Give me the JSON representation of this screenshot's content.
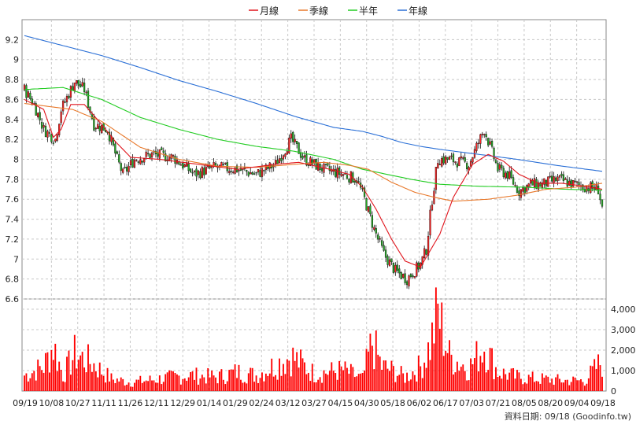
{
  "chart_data": {
    "type": "candlestick",
    "legend": [
      {
        "label": "月線",
        "color": "#e0141c"
      },
      {
        "label": "季線",
        "color": "#e8782a"
      },
      {
        "label": "半年",
        "color": "#22cc22"
      },
      {
        "label": "年線",
        "color": "#2a6fd6"
      }
    ],
    "price_axis": {
      "ticks": [
        "9.2",
        "9",
        "8.8",
        "8.6",
        "8.4",
        "8.2",
        "8",
        "7.8",
        "7.6",
        "7.4",
        "7.2",
        "7",
        "6.8",
        "6.6"
      ],
      "ylim": [
        6.6,
        9.4
      ]
    },
    "volume_axis": {
      "ticks": [
        "4,000",
        "3,000",
        "2,000",
        "1,000",
        "0"
      ],
      "ylim": [
        0,
        4500
      ]
    },
    "x_labels": [
      "09/19",
      "10/08",
      "10/27",
      "11/11",
      "11/26",
      "12/11",
      "12/29",
      "01/14",
      "01/29",
      "02/24",
      "03/12",
      "03/27",
      "04/15",
      "04/30",
      "05/18",
      "06/02",
      "06/17",
      "07/03",
      "07/21",
      "08/05",
      "08/20",
      "09/04",
      "09/18"
    ],
    "candle_colors": {
      "up": "#ff2222",
      "down": "#22aa22",
      "volume": "#ff0000"
    },
    "close_anchors": [
      [
        0,
        8.7
      ],
      [
        5,
        8.55
      ],
      [
        10,
        8.3
      ],
      [
        16,
        8.2
      ],
      [
        19,
        8.5
      ],
      [
        26,
        8.78
      ],
      [
        31,
        8.7
      ],
      [
        36,
        8.35
      ],
      [
        43,
        8.3
      ],
      [
        48,
        8.0
      ],
      [
        51,
        7.85
      ],
      [
        57,
        8.0
      ],
      [
        66,
        8.05
      ],
      [
        77,
        8.02
      ],
      [
        88,
        7.85
      ],
      [
        98,
        7.92
      ],
      [
        110,
        7.9
      ],
      [
        120,
        7.85
      ],
      [
        130,
        7.95
      ],
      [
        138,
        8.2
      ],
      [
        145,
        8.0
      ],
      [
        155,
        7.9
      ],
      [
        165,
        7.85
      ],
      [
        172,
        7.8
      ],
      [
        176,
        7.6
      ],
      [
        181,
        7.3
      ],
      [
        186,
        7.05
      ],
      [
        192,
        6.88
      ],
      [
        198,
        6.8
      ],
      [
        205,
        6.95
      ],
      [
        208,
        7.1
      ],
      [
        211,
        7.6
      ],
      [
        214,
        8.0
      ],
      [
        220,
        8.0
      ],
      [
        230,
        7.95
      ],
      [
        238,
        8.3
      ],
      [
        245,
        7.9
      ],
      [
        250,
        7.85
      ],
      [
        256,
        7.68
      ],
      [
        262,
        7.75
      ],
      [
        268,
        7.75
      ],
      [
        276,
        7.8
      ],
      [
        284,
        7.75
      ],
      [
        292,
        7.72
      ],
      [
        297,
        7.7
      ],
      [
        299,
        7.52
      ]
    ],
    "ma_month": [
      [
        0,
        8.6
      ],
      [
        10,
        8.5
      ],
      [
        15,
        8.22
      ],
      [
        19,
        8.3
      ],
      [
        24,
        8.55
      ],
      [
        31,
        8.55
      ],
      [
        40,
        8.35
      ],
      [
        47,
        8.18
      ],
      [
        55,
        8.02
      ],
      [
        70,
        8.0
      ],
      [
        90,
        7.95
      ],
      [
        110,
        7.9
      ],
      [
        130,
        7.95
      ],
      [
        142,
        7.97
      ],
      [
        158,
        7.9
      ],
      [
        168,
        7.85
      ],
      [
        175,
        7.72
      ],
      [
        182,
        7.5
      ],
      [
        190,
        7.2
      ],
      [
        197,
        6.98
      ],
      [
        205,
        6.92
      ],
      [
        215,
        7.25
      ],
      [
        222,
        7.62
      ],
      [
        232,
        7.95
      ],
      [
        240,
        8.05
      ],
      [
        248,
        7.98
      ],
      [
        256,
        7.85
      ],
      [
        266,
        7.76
      ],
      [
        278,
        7.76
      ],
      [
        290,
        7.73
      ],
      [
        299,
        7.7
      ]
    ],
    "ma_season": [
      [
        0,
        8.56
      ],
      [
        25,
        8.5
      ],
      [
        40,
        8.38
      ],
      [
        60,
        8.12
      ],
      [
        80,
        8.0
      ],
      [
        100,
        7.93
      ],
      [
        120,
        7.92
      ],
      [
        140,
        7.95
      ],
      [
        155,
        7.97
      ],
      [
        168,
        7.94
      ],
      [
        178,
        7.9
      ],
      [
        190,
        7.77
      ],
      [
        202,
        7.67
      ],
      [
        212,
        7.62
      ],
      [
        222,
        7.58
      ],
      [
        240,
        7.6
      ],
      [
        255,
        7.64
      ],
      [
        270,
        7.7
      ],
      [
        285,
        7.72
      ],
      [
        299,
        7.76
      ]
    ],
    "ma_half": [
      [
        0,
        8.7
      ],
      [
        20,
        8.72
      ],
      [
        40,
        8.6
      ],
      [
        60,
        8.42
      ],
      [
        80,
        8.3
      ],
      [
        100,
        8.2
      ],
      [
        120,
        8.13
      ],
      [
        140,
        8.08
      ],
      [
        160,
        8.0
      ],
      [
        175,
        7.9
      ],
      [
        190,
        7.84
      ],
      [
        200,
        7.8
      ],
      [
        215,
        7.75
      ],
      [
        235,
        7.73
      ],
      [
        260,
        7.72
      ],
      [
        280,
        7.7
      ],
      [
        299,
        7.69
      ]
    ],
    "ma_year": [
      [
        0,
        9.24
      ],
      [
        20,
        9.14
      ],
      [
        40,
        9.04
      ],
      [
        60,
        8.92
      ],
      [
        80,
        8.79
      ],
      [
        100,
        8.68
      ],
      [
        120,
        8.56
      ],
      [
        140,
        8.43
      ],
      [
        160,
        8.32
      ],
      [
        175,
        8.28
      ],
      [
        185,
        8.23
      ],
      [
        195,
        8.17
      ],
      [
        205,
        8.13
      ],
      [
        215,
        8.1
      ],
      [
        235,
        8.05
      ],
      [
        255,
        8.0
      ],
      [
        275,
        7.94
      ],
      [
        299,
        7.88
      ]
    ],
    "volume_anchors": [
      [
        0,
        900
      ],
      [
        10,
        1400
      ],
      [
        15,
        2600
      ],
      [
        20,
        900
      ],
      [
        26,
        2100
      ],
      [
        35,
        1600
      ],
      [
        45,
        700
      ],
      [
        55,
        500
      ],
      [
        70,
        700
      ],
      [
        85,
        900
      ],
      [
        100,
        800
      ],
      [
        110,
        1100
      ],
      [
        120,
        900
      ],
      [
        138,
        2000
      ],
      [
        150,
        1000
      ],
      [
        165,
        1200
      ],
      [
        175,
        700
      ],
      [
        180,
        2800
      ],
      [
        185,
        1400
      ],
      [
        190,
        1200
      ],
      [
        197,
        800
      ],
      [
        205,
        1400
      ],
      [
        210,
        2600
      ],
      [
        214,
        4500
      ],
      [
        220,
        2000
      ],
      [
        230,
        1300
      ],
      [
        238,
        2600
      ],
      [
        245,
        1100
      ],
      [
        255,
        800
      ],
      [
        265,
        700
      ],
      [
        280,
        600
      ],
      [
        290,
        600
      ],
      [
        298,
        1600
      ]
    ]
  },
  "footer": {
    "source": "資料日期: 09/18  (Goodinfo.tw)"
  }
}
